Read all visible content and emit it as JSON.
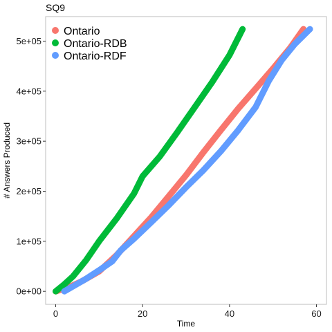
{
  "chart_data": {
    "type": "line",
    "title": "SQ9",
    "xlabel": "Time",
    "ylabel": "# Answers Produced",
    "xlim": [
      -2.3,
      62.3
    ],
    "ylim": [
      -26000,
      549000
    ],
    "x_ticks": [
      0,
      20,
      40,
      60
    ],
    "x_tick_labels": [
      "0",
      "20",
      "40",
      "60"
    ],
    "y_ticks": [
      0,
      100000,
      200000,
      300000,
      400000,
      500000
    ],
    "y_tick_labels": [
      "0e+00",
      "1e+05",
      "2e+05",
      "3e+05",
      "4e+05",
      "5e+05"
    ],
    "grid": false,
    "legend_position": "top-left",
    "series": [
      {
        "name": "Ontario",
        "color": "#F8766D",
        "points": [
          [
            0,
            0
          ],
          [
            3,
            8000
          ],
          [
            6,
            20000
          ],
          [
            10,
            40000
          ],
          [
            14,
            72000
          ],
          [
            18,
            110000
          ],
          [
            22,
            148000
          ],
          [
            26,
            190000
          ],
          [
            30,
            232000
          ],
          [
            34,
            278000
          ],
          [
            38,
            322000
          ],
          [
            42,
            365000
          ],
          [
            46,
            405000
          ],
          [
            50,
            445000
          ],
          [
            54,
            487000
          ],
          [
            57,
            524000
          ]
        ]
      },
      {
        "name": "Ontario-RDB",
        "color": "#00BA38",
        "points": [
          [
            0,
            0
          ],
          [
            2,
            14000
          ],
          [
            4,
            30000
          ],
          [
            7,
            62000
          ],
          [
            10,
            100000
          ],
          [
            14,
            145000
          ],
          [
            18,
            195000
          ],
          [
            20,
            230000
          ],
          [
            24,
            270000
          ],
          [
            28,
            318000
          ],
          [
            32,
            368000
          ],
          [
            36,
            418000
          ],
          [
            40,
            472000
          ],
          [
            43,
            524000
          ]
        ]
      },
      {
        "name": "Ontario-RDF",
        "color": "#619CFF",
        "points": [
          [
            2,
            0
          ],
          [
            4,
            10000
          ],
          [
            7,
            25000
          ],
          [
            10,
            42000
          ],
          [
            13,
            60000
          ],
          [
            15,
            82000
          ],
          [
            18,
            105000
          ],
          [
            22,
            138000
          ],
          [
            26,
            172000
          ],
          [
            30,
            208000
          ],
          [
            34,
            242000
          ],
          [
            38,
            280000
          ],
          [
            42,
            322000
          ],
          [
            46,
            368000
          ],
          [
            49,
            420000
          ],
          [
            52,
            462000
          ],
          [
            55,
            494000
          ],
          [
            58.5,
            524000
          ]
        ]
      }
    ]
  }
}
